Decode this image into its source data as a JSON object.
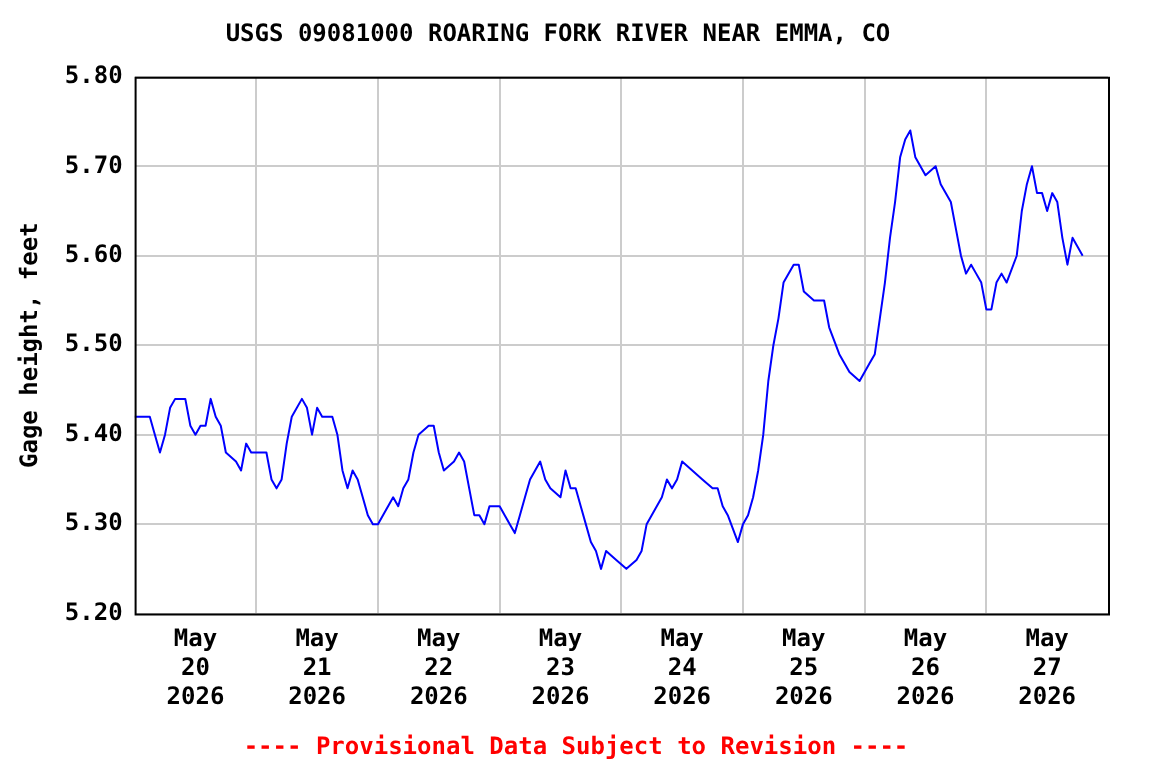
{
  "chart_data": {
    "type": "line",
    "title": "USGS 09081000 ROARING FORK RIVER NEAR EMMA, CO",
    "ylabel": "Gage height, feet",
    "annotations": [
      "---- Provisional Data Subject to Revision ----"
    ],
    "xlim": [
      "2026-05-20T00:00",
      "2026-05-28T00:00"
    ],
    "xticks": [
      {
        "value": "2026-05-20T12:00",
        "label": "May 20 2026"
      },
      {
        "value": "2026-05-21T00:00",
        "label": null
      },
      {
        "value": "2026-05-21T12:00",
        "label": "May 21 2026"
      },
      {
        "value": "2026-05-22T00:00",
        "label": null
      },
      {
        "value": "2026-05-22T12:00",
        "label": "May 22 2026"
      },
      {
        "value": "2026-05-23T00:00",
        "label": null
      },
      {
        "value": "2026-05-23T12:00",
        "label": "May 23 2026"
      },
      {
        "value": "2026-05-24T00:00",
        "label": null
      },
      {
        "value": "2026-05-24T12:00",
        "label": "May 24 2026"
      },
      {
        "value": "2026-05-25T00:00",
        "label": null
      },
      {
        "value": "2026-05-25T12:00",
        "label": "May 25 2026"
      },
      {
        "value": "2026-05-26T00:00",
        "label": null
      },
      {
        "value": "2026-05-26T12:00",
        "label": "May 26 2026"
      },
      {
        "value": "2026-05-27T00:00",
        "label": null
      },
      {
        "value": "2026-05-27T12:00",
        "label": "May 27 2026"
      }
    ],
    "ylim": [
      5.2,
      5.8
    ],
    "yticks": [
      {
        "value": 5.2,
        "label": "5.20"
      },
      {
        "value": 5.3,
        "label": "5.30"
      },
      {
        "value": 5.4,
        "label": "5.40"
      },
      {
        "value": 5.5,
        "label": "5.50"
      },
      {
        "value": 5.6,
        "label": "5.60"
      },
      {
        "value": 5.7,
        "label": "5.70"
      },
      {
        "value": 5.8,
        "label": "5.80"
      }
    ],
    "grid": true,
    "legend": false,
    "marker": "none",
    "line_style": "solid",
    "series": [
      {
        "color": "#0000ff",
        "x": [
          "2026-05-20T00:00",
          "2026-05-20T03:00",
          "2026-05-20T04:00",
          "2026-05-20T05:00",
          "2026-05-20T06:00",
          "2026-05-20T07:00",
          "2026-05-20T08:00",
          "2026-05-20T10:00",
          "2026-05-20T11:00",
          "2026-05-20T12:00",
          "2026-05-20T13:00",
          "2026-05-20T14:00",
          "2026-05-20T15:00",
          "2026-05-20T16:00",
          "2026-05-20T17:00",
          "2026-05-20T18:00",
          "2026-05-20T20:00",
          "2026-05-20T21:00",
          "2026-05-20T22:00",
          "2026-05-20T23:00",
          "2026-05-21T02:00",
          "2026-05-21T03:00",
          "2026-05-21T04:00",
          "2026-05-21T05:00",
          "2026-05-21T06:00",
          "2026-05-21T07:00",
          "2026-05-21T09:00",
          "2026-05-21T10:00",
          "2026-05-21T11:00",
          "2026-05-21T12:00",
          "2026-05-21T13:00",
          "2026-05-21T15:00",
          "2026-05-21T16:00",
          "2026-05-21T17:00",
          "2026-05-21T18:00",
          "2026-05-21T19:00",
          "2026-05-21T20:00",
          "2026-05-21T21:00",
          "2026-05-21T22:00",
          "2026-05-21T23:00",
          "2026-05-22T00:00",
          "2026-05-22T02:00",
          "2026-05-22T03:00",
          "2026-05-22T04:00",
          "2026-05-22T05:00",
          "2026-05-22T06:00",
          "2026-05-22T07:00",
          "2026-05-22T08:00",
          "2026-05-22T10:00",
          "2026-05-22T11:00",
          "2026-05-22T12:00",
          "2026-05-22T13:00",
          "2026-05-22T15:00",
          "2026-05-22T16:00",
          "2026-05-22T17:00",
          "2026-05-22T18:00",
          "2026-05-22T19:00",
          "2026-05-22T20:00",
          "2026-05-22T21:00",
          "2026-05-22T22:00",
          "2026-05-23T00:00",
          "2026-05-23T01:00",
          "2026-05-23T02:00",
          "2026-05-23T03:00",
          "2026-05-23T04:00",
          "2026-05-23T05:00",
          "2026-05-23T06:00",
          "2026-05-23T07:00",
          "2026-05-23T08:00",
          "2026-05-23T09:00",
          "2026-05-23T10:00",
          "2026-05-23T12:00",
          "2026-05-23T13:00",
          "2026-05-23T14:00",
          "2026-05-23T15:00",
          "2026-05-23T16:00",
          "2026-05-23T17:00",
          "2026-05-23T18:00",
          "2026-05-23T19:00",
          "2026-05-23T20:00",
          "2026-05-23T21:00",
          "2026-05-23T23:00",
          "2026-05-24T01:00",
          "2026-05-24T03:00",
          "2026-05-24T04:00",
          "2026-05-24T05:00",
          "2026-05-24T07:00",
          "2026-05-24T08:00",
          "2026-05-24T09:00",
          "2026-05-24T10:00",
          "2026-05-24T11:00",
          "2026-05-24T12:00",
          "2026-05-24T14:00",
          "2026-05-24T16:00",
          "2026-05-24T18:00",
          "2026-05-24T19:00",
          "2026-05-24T20:00",
          "2026-05-24T21:00",
          "2026-05-24T23:00",
          "2026-05-25T00:00",
          "2026-05-25T01:00",
          "2026-05-25T02:00",
          "2026-05-25T03:00",
          "2026-05-25T04:00",
          "2026-05-25T05:00",
          "2026-05-25T06:00",
          "2026-05-25T07:00",
          "2026-05-25T08:00",
          "2026-05-25T10:00",
          "2026-05-25T11:00",
          "2026-05-25T12:00",
          "2026-05-25T14:00",
          "2026-05-25T16:00",
          "2026-05-25T17:00",
          "2026-05-25T19:00",
          "2026-05-25T21:00",
          "2026-05-25T23:00",
          "2026-05-26T01:00",
          "2026-05-26T02:00",
          "2026-05-26T03:00",
          "2026-05-26T04:00",
          "2026-05-26T05:00",
          "2026-05-26T06:00",
          "2026-05-26T07:00",
          "2026-05-26T08:00",
          "2026-05-26T09:00",
          "2026-05-26T10:00",
          "2026-05-26T12:00",
          "2026-05-26T14:00",
          "2026-05-26T15:00",
          "2026-05-26T17:00",
          "2026-05-26T18:00",
          "2026-05-26T19:00",
          "2026-05-26T20:00",
          "2026-05-26T21:00",
          "2026-05-26T22:00",
          "2026-05-26T23:00",
          "2026-05-27T00:00",
          "2026-05-27T01:00",
          "2026-05-27T02:00",
          "2026-05-27T03:00",
          "2026-05-27T04:00",
          "2026-05-27T06:00",
          "2026-05-27T07:00",
          "2026-05-27T08:00",
          "2026-05-27T09:00",
          "2026-05-27T10:00",
          "2026-05-27T11:00",
          "2026-05-27T12:00",
          "2026-05-27T13:00",
          "2026-05-27T14:00",
          "2026-05-27T15:00",
          "2026-05-27T16:00",
          "2026-05-27T17:00",
          "2026-05-27T18:00",
          "2026-05-27T19:00"
        ],
        "values": [
          5.42,
          5.42,
          5.4,
          5.38,
          5.4,
          5.43,
          5.44,
          5.44,
          5.41,
          5.4,
          5.41,
          5.41,
          5.44,
          5.42,
          5.41,
          5.38,
          5.37,
          5.36,
          5.39,
          5.38,
          5.38,
          5.35,
          5.34,
          5.35,
          5.39,
          5.42,
          5.44,
          5.43,
          5.4,
          5.43,
          5.42,
          5.42,
          5.4,
          5.36,
          5.34,
          5.36,
          5.35,
          5.33,
          5.31,
          5.3,
          5.3,
          5.32,
          5.33,
          5.32,
          5.34,
          5.35,
          5.38,
          5.4,
          5.41,
          5.41,
          5.38,
          5.36,
          5.37,
          5.38,
          5.37,
          5.34,
          5.31,
          5.31,
          5.3,
          5.32,
          5.32,
          5.31,
          5.3,
          5.29,
          5.31,
          5.33,
          5.35,
          5.36,
          5.37,
          5.35,
          5.34,
          5.33,
          5.36,
          5.34,
          5.34,
          5.32,
          5.3,
          5.28,
          5.27,
          5.25,
          5.27,
          5.26,
          5.25,
          5.26,
          5.27,
          5.3,
          5.32,
          5.33,
          5.35,
          5.34,
          5.35,
          5.37,
          5.36,
          5.35,
          5.34,
          5.34,
          5.32,
          5.31,
          5.28,
          5.3,
          5.31,
          5.33,
          5.36,
          5.4,
          5.46,
          5.5,
          5.53,
          5.57,
          5.59,
          5.59,
          5.56,
          5.55,
          5.55,
          5.52,
          5.49,
          5.47,
          5.46,
          5.48,
          5.49,
          5.53,
          5.57,
          5.62,
          5.66,
          5.71,
          5.73,
          5.74,
          5.71,
          5.69,
          5.7,
          5.68,
          5.66,
          5.63,
          5.6,
          5.58,
          5.59,
          5.58,
          5.57,
          5.54,
          5.54,
          5.57,
          5.58,
          5.57,
          5.6,
          5.65,
          5.68,
          5.7,
          5.67,
          5.67,
          5.65,
          5.67,
          5.66,
          5.62,
          5.59,
          5.62,
          5.61,
          5.6
        ]
      }
    ]
  }
}
